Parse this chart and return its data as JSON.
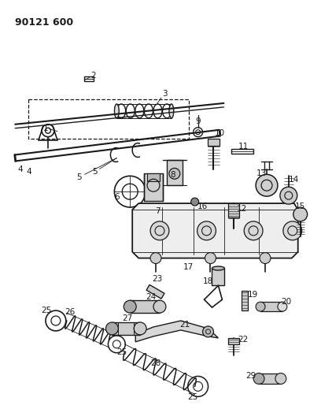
{
  "title": "90121 600",
  "bg_color": "#ffffff",
  "figsize": [
    3.94,
    5.33
  ],
  "dpi": 100
}
